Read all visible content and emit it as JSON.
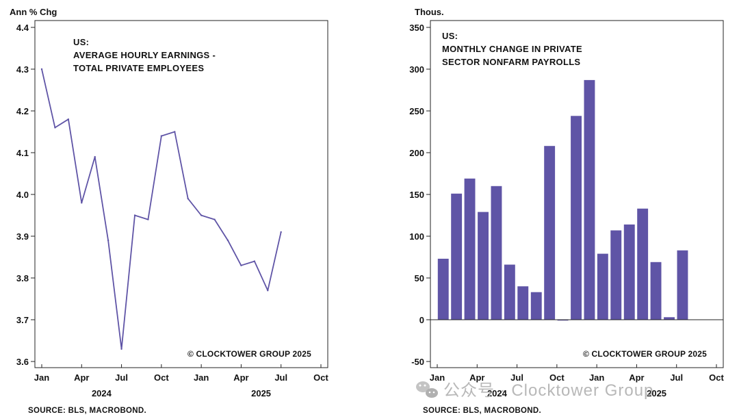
{
  "charts": [
    {
      "unit_label": "Ann % Chg",
      "title_lines": [
        "US:",
        "AVERAGE HOURLY EARNINGS -",
        "TOTAL PRIVATE EMPLOYEES"
      ],
      "copyright": "© CLOCKTOWER GROUP 2025",
      "source": "SOURCE: BLS, MACROBOND.",
      "month_ticks": [
        "Jan",
        "Apr",
        "Jul",
        "Oct",
        "Jan",
        "Apr",
        "Jul",
        "Oct"
      ],
      "year_labels": [
        "2024",
        "2025"
      ],
      "y_ticks": [
        "3.6",
        "3.7",
        "3.8",
        "3.9",
        "4.0",
        "4.1",
        "4.2",
        "4.3",
        "4.4"
      ]
    },
    {
      "unit_label": "Thous.",
      "title_lines": [
        "US:",
        "MONTHLY CHANGE IN PRIVATE",
        "SECTOR NONFARM PAYROLLS"
      ],
      "copyright": "© CLOCKTOWER GROUP 2025",
      "source": "SOURCE: BLS, MACROBOND.",
      "month_ticks": [
        "Jan",
        "Apr",
        "Jul",
        "Oct",
        "Jan",
        "Apr",
        "Jul",
        "Oct"
      ],
      "year_labels": [
        "2024",
        "2025"
      ],
      "y_ticks": [
        "-50",
        "0",
        "50",
        "100",
        "150",
        "200",
        "250",
        "300",
        "350"
      ]
    }
  ],
  "watermark": "公众号 · Clocktower Group",
  "chart_data": [
    {
      "type": "line",
      "title": "US: AVERAGE HOURLY EARNINGS - TOTAL PRIVATE EMPLOYEES",
      "ylabel": "Ann % Chg",
      "ylim": [
        3.6,
        4.4
      ],
      "xlim": [
        "2024-01",
        "2025-10"
      ],
      "x": [
        "2024-01",
        "2024-02",
        "2024-03",
        "2024-04",
        "2024-05",
        "2024-06",
        "2024-07",
        "2024-08",
        "2024-09",
        "2024-10",
        "2024-11",
        "2024-12",
        "2025-01",
        "2025-02",
        "2025-03",
        "2025-04",
        "2025-05",
        "2025-06",
        "2025-07"
      ],
      "values": [
        4.3,
        4.16,
        4.18,
        3.98,
        4.09,
        3.89,
        3.63,
        3.95,
        3.94,
        4.14,
        4.15,
        3.99,
        3.95,
        3.94,
        3.89,
        3.83,
        3.84,
        3.77,
        3.91
      ],
      "grid": false,
      "color": "#5f54a6"
    },
    {
      "type": "bar",
      "title": "US: MONTHLY CHANGE IN PRIVATE SECTOR NONFARM PAYROLLS",
      "ylabel": "Thous.",
      "ylim": [
        -50,
        350
      ],
      "xlim": [
        "2024-01",
        "2025-10"
      ],
      "x": [
        "2024-01",
        "2024-02",
        "2024-03",
        "2024-04",
        "2024-05",
        "2024-06",
        "2024-07",
        "2024-08",
        "2024-09",
        "2024-10",
        "2024-11",
        "2024-12",
        "2025-01",
        "2025-02",
        "2025-03",
        "2025-04",
        "2025-05",
        "2025-06",
        "2025-07"
      ],
      "values": [
        73,
        151,
        169,
        129,
        160,
        66,
        40,
        33,
        208,
        -1,
        244,
        287,
        79,
        107,
        114,
        133,
        69,
        3,
        83
      ],
      "grid": false,
      "color": "#5f54a6"
    }
  ]
}
